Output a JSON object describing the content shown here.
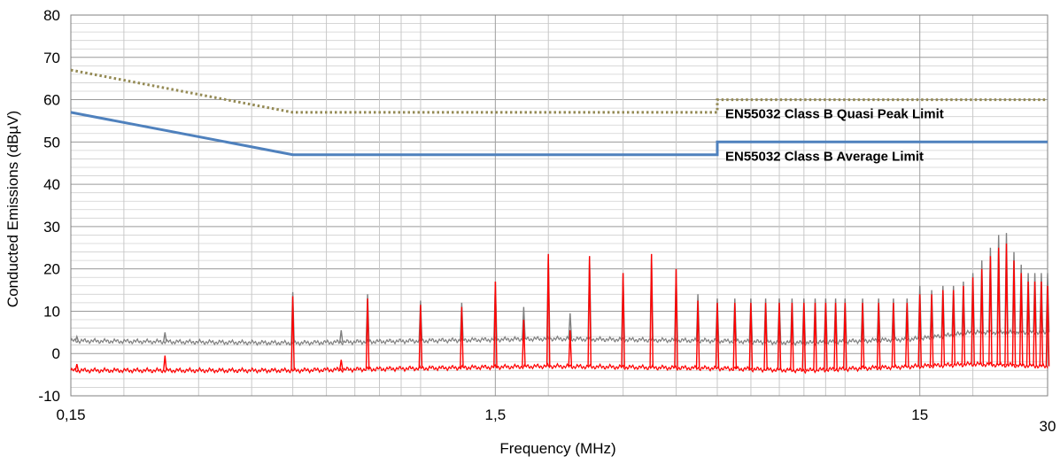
{
  "chart_data": {
    "type": "line",
    "title": "",
    "xlabel": "Frequency (MHz)",
    "ylabel": "Conducted Emissions (dBµV)",
    "x_scale": "log",
    "xlim": [
      0.15,
      30
    ],
    "ylim": [
      -10,
      80
    ],
    "x_ticks": [
      "0,15",
      "1,5",
      "15",
      "30"
    ],
    "y_ticks": [
      "-10",
      "0",
      "10",
      "20",
      "30",
      "40",
      "50",
      "60",
      "70",
      "80"
    ],
    "grid": true,
    "annotations": [
      {
        "text": "EN55032 Class B Quasi Peak Limit",
        "series": "qp_limit"
      },
      {
        "text": "EN55032 Class B Average Limit",
        "series": "avg_limit"
      }
    ],
    "series": [
      {
        "id": "qp_limit",
        "color": "#948a54",
        "style": "dotted",
        "points": [
          [
            0.15,
            67
          ],
          [
            0.5,
            57
          ],
          [
            5,
            57
          ],
          [
            5,
            60
          ],
          [
            30,
            60
          ]
        ]
      },
      {
        "id": "avg_limit",
        "color": "#4f81bd",
        "style": "solid",
        "points": [
          [
            0.15,
            57
          ],
          [
            0.5,
            47
          ],
          [
            5,
            47
          ],
          [
            5,
            50
          ],
          [
            30,
            50
          ]
        ]
      },
      {
        "id": "peak_trace",
        "color": "#7f7f7f",
        "style": "solid",
        "baseline": [
          [
            0.15,
            3
          ],
          [
            0.5,
            2.5
          ],
          [
            1,
            3
          ],
          [
            2,
            3.5
          ],
          [
            5,
            3
          ],
          [
            8,
            2.5
          ],
          [
            15,
            3.5
          ],
          [
            20,
            5
          ],
          [
            30,
            5
          ]
        ],
        "peaks": [
          [
            0.155,
            4
          ],
          [
            0.25,
            5
          ],
          [
            0.5,
            14.5
          ],
          [
            0.65,
            5.5
          ],
          [
            0.75,
            14
          ],
          [
            1.0,
            12.5
          ],
          [
            1.25,
            12
          ],
          [
            1.5,
            17
          ],
          [
            1.75,
            11
          ],
          [
            2.0,
            23.5
          ],
          [
            2.25,
            9.5
          ],
          [
            2.5,
            23
          ],
          [
            3.0,
            19
          ],
          [
            3.5,
            23.5
          ],
          [
            4.0,
            20
          ],
          [
            4.5,
            14
          ],
          [
            5.0,
            13
          ],
          [
            5.5,
            13
          ],
          [
            6.0,
            13
          ],
          [
            6.5,
            13
          ],
          [
            7.0,
            13
          ],
          [
            7.5,
            13
          ],
          [
            8.0,
            13
          ],
          [
            8.5,
            13
          ],
          [
            9.0,
            13
          ],
          [
            9.5,
            13
          ],
          [
            10,
            13
          ],
          [
            11,
            13
          ],
          [
            12,
            13
          ],
          [
            13,
            13
          ],
          [
            14,
            13
          ],
          [
            15,
            16
          ],
          [
            16,
            15
          ],
          [
            17,
            16
          ],
          [
            18,
            16
          ],
          [
            19,
            17
          ],
          [
            20,
            19
          ],
          [
            21,
            22
          ],
          [
            22,
            25
          ],
          [
            23,
            28
          ],
          [
            24,
            28.5
          ],
          [
            25,
            24
          ],
          [
            26,
            21
          ],
          [
            27,
            19
          ],
          [
            28,
            19
          ],
          [
            29,
            19
          ],
          [
            30,
            19
          ]
        ]
      },
      {
        "id": "average_trace",
        "color": "#ff0000",
        "style": "solid",
        "baseline": [
          [
            0.15,
            -4
          ],
          [
            0.5,
            -4
          ],
          [
            1,
            -3.5
          ],
          [
            2,
            -3
          ],
          [
            5,
            -3.5
          ],
          [
            8,
            -4
          ],
          [
            15,
            -3
          ],
          [
            20,
            -2.5
          ],
          [
            30,
            -3
          ]
        ],
        "peaks": [
          [
            0.155,
            -2.5
          ],
          [
            0.25,
            -0.5
          ],
          [
            0.5,
            13.5
          ],
          [
            0.65,
            -1.5
          ],
          [
            0.75,
            13
          ],
          [
            1.0,
            11.5
          ],
          [
            1.25,
            11
          ],
          [
            1.5,
            17
          ],
          [
            1.75,
            8
          ],
          [
            2.0,
            23.5
          ],
          [
            2.25,
            5.5
          ],
          [
            2.5,
            23
          ],
          [
            3.0,
            19
          ],
          [
            3.5,
            23.5
          ],
          [
            4.0,
            20
          ],
          [
            4.5,
            12.5
          ],
          [
            5.0,
            12
          ],
          [
            5.5,
            12
          ],
          [
            6.0,
            12
          ],
          [
            6.5,
            12
          ],
          [
            7.0,
            12
          ],
          [
            7.5,
            12
          ],
          [
            8.0,
            12
          ],
          [
            8.5,
            12
          ],
          [
            9.0,
            12
          ],
          [
            9.5,
            12
          ],
          [
            10,
            12
          ],
          [
            11,
            12
          ],
          [
            12,
            12
          ],
          [
            13,
            12
          ],
          [
            14,
            12
          ],
          [
            15,
            14
          ],
          [
            16,
            14
          ],
          [
            17,
            15
          ],
          [
            18,
            15
          ],
          [
            19,
            16
          ],
          [
            20,
            18
          ],
          [
            21,
            20
          ],
          [
            22,
            23
          ],
          [
            23,
            25
          ],
          [
            24,
            26
          ],
          [
            25,
            22
          ],
          [
            26,
            19
          ],
          [
            27,
            17
          ],
          [
            28,
            17
          ],
          [
            29,
            17
          ],
          [
            30,
            16
          ]
        ]
      }
    ]
  }
}
